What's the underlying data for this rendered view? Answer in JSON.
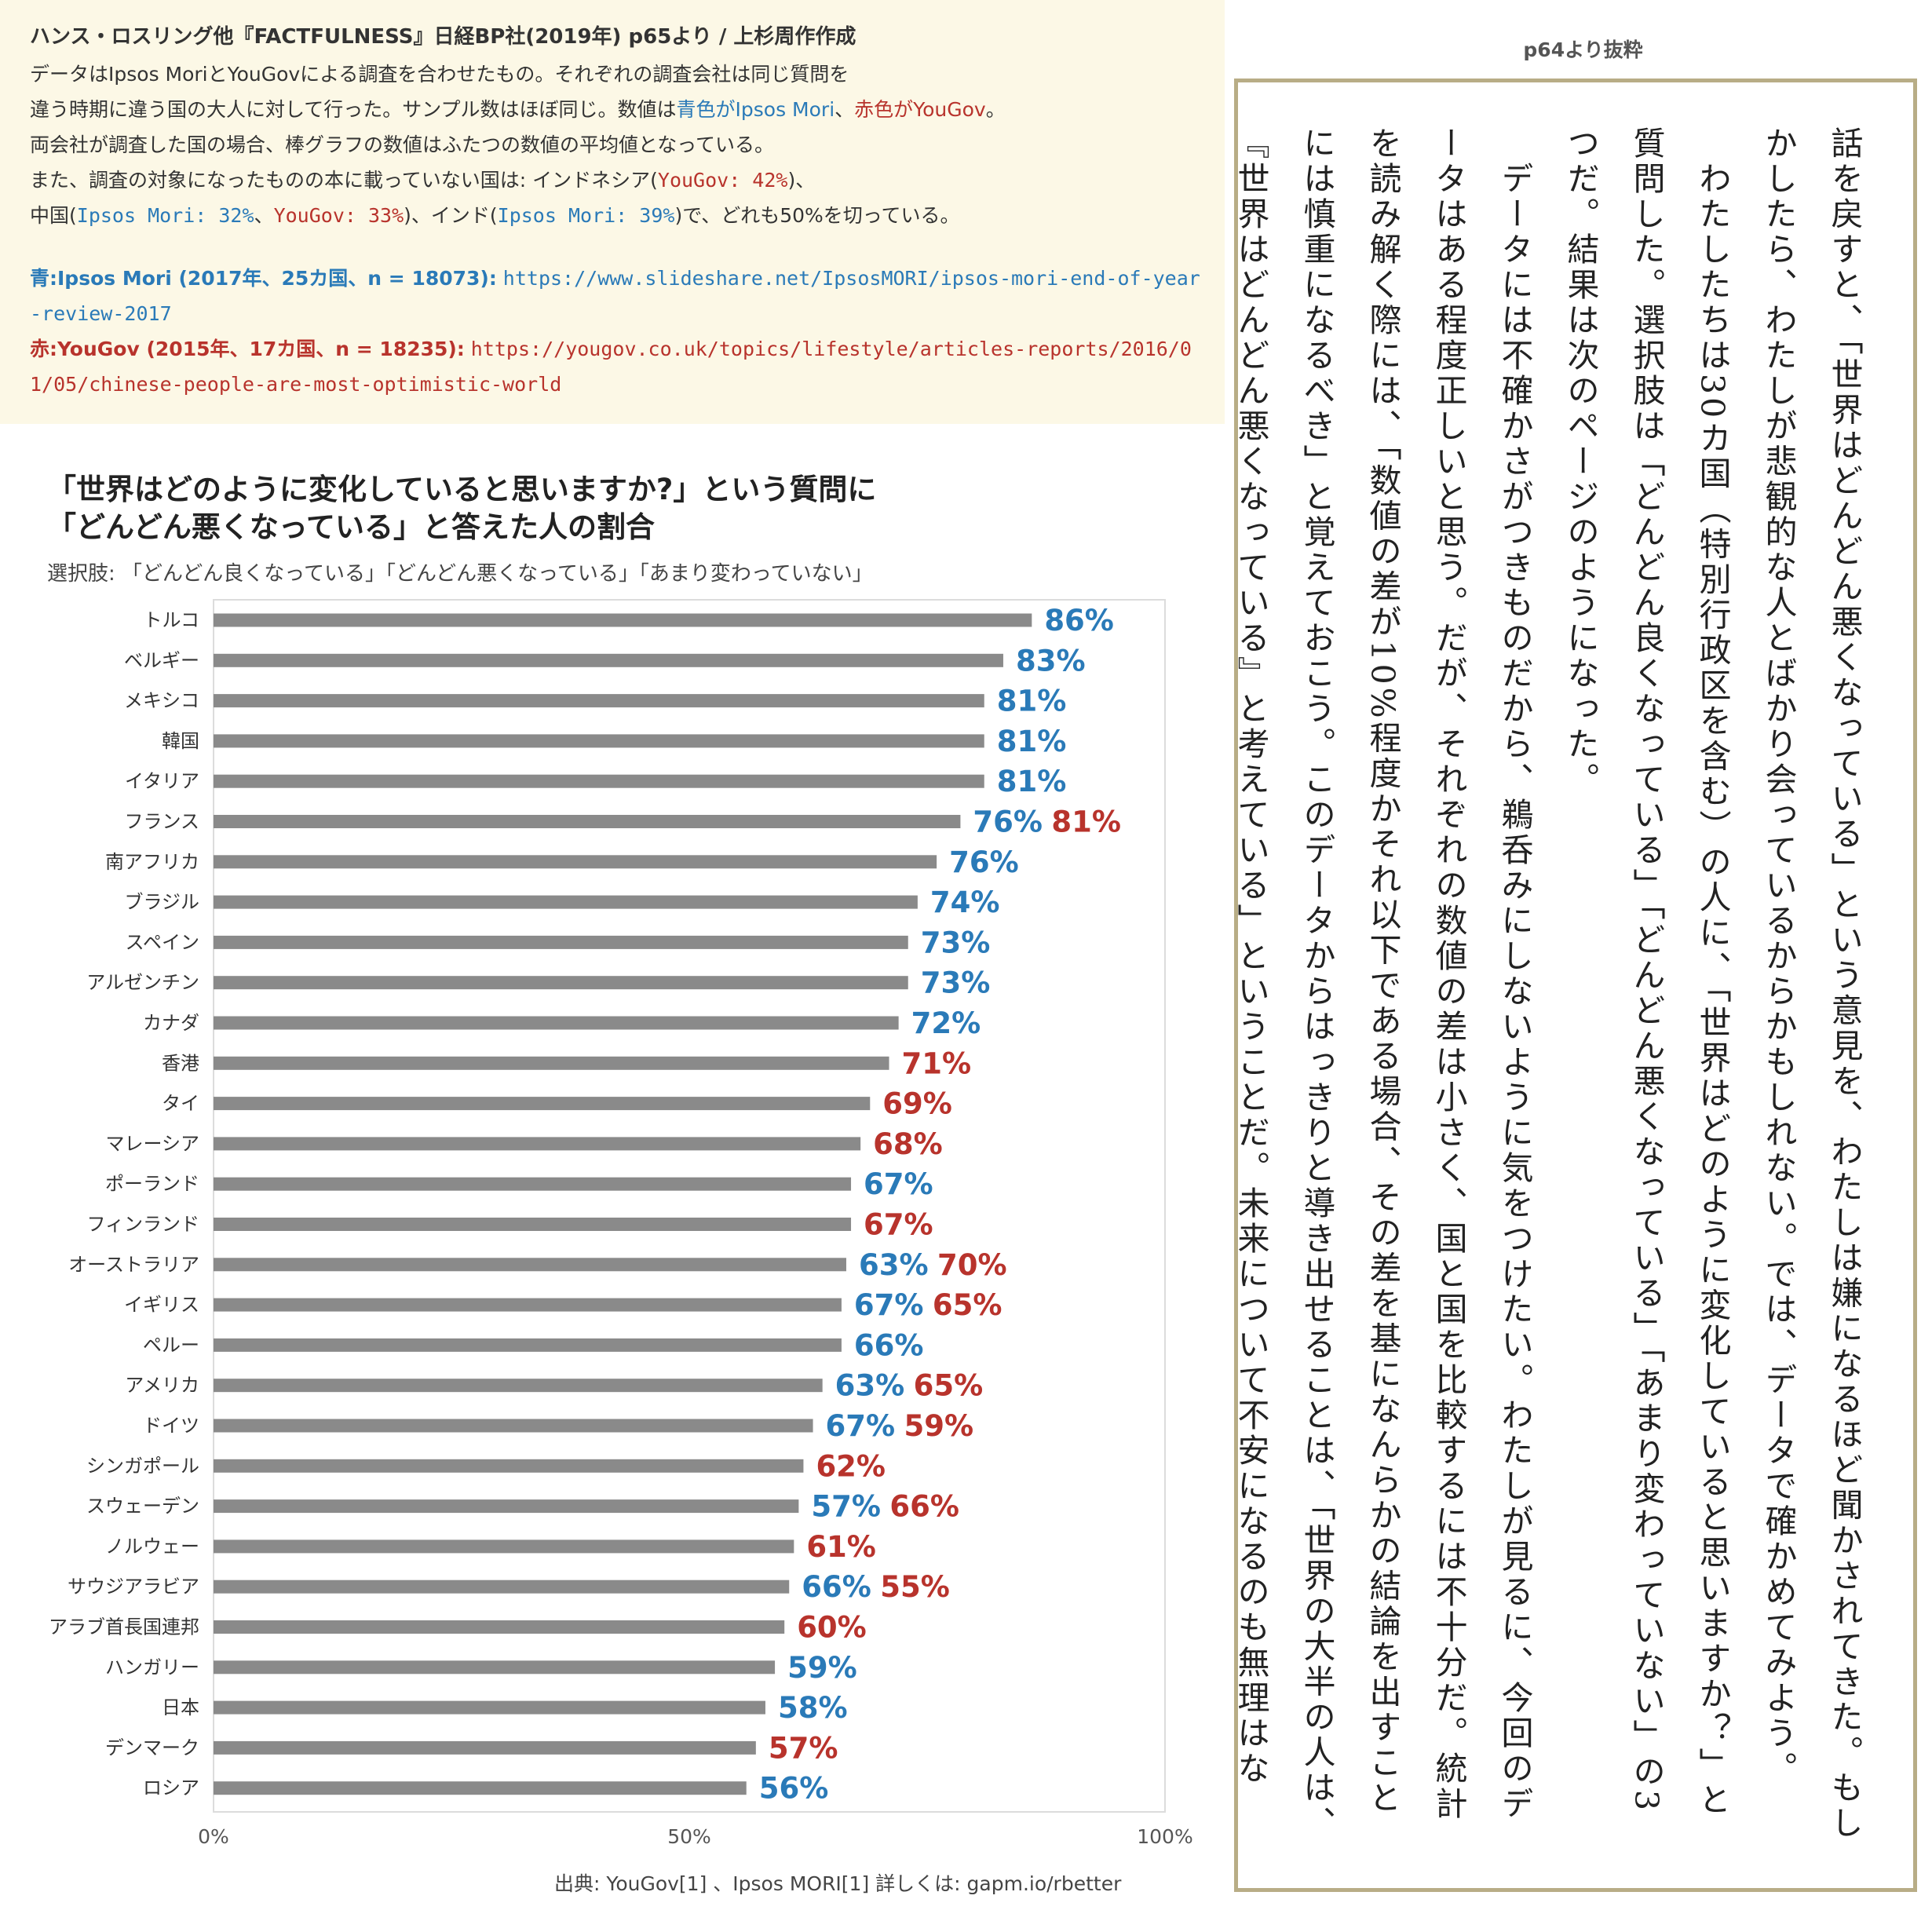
{
  "info": {
    "credit": "ハンス・ロスリング他『FACTFULNESS』日経BP社(2019年) p65より / 上杉周作作成",
    "note_line1": "データはIpsos MoriとYouGovによる調査を合わせたもの。それぞれの調査会社は同じ質問を",
    "note_line2_a": "違う時期に違う国の大人に対して行った。サンプル数はほぼ同じ。数値は",
    "note_line2_blue": "青色がIpsos Mori",
    "note_line2_sep": "、",
    "note_line2_red": "赤色がYouGov",
    "note_line2_end": "。",
    "note_line3": "両会社が調査した国の場合、棒グラフの数値はふたつの数値の平均値となっている。",
    "note_line4_a": "また、調査の対象になったものの本に載っていない国は: インドネシア(",
    "note_line4_red": "YouGov: 42%",
    "note_line4_end": ")、",
    "note_line5_a": "中国(",
    "note_line5_blue": "Ipsos Mori: 32%",
    "note_line5_sep": "、",
    "note_line5_red": "YouGov: 33%",
    "note_line5_b": ")、インド(",
    "note_line5_blue2": "Ipsos Mori: 39%",
    "note_line5_end": ")で、どれも50%を切っている。",
    "source_blue_label": "青:Ipsos Mori (2017年、25カ国、n = 18073):",
    "source_blue_url": "https://www.slideshare.net/IpsosMORI/ipsos-mori-end-of-year-review-2017",
    "source_red_label": "赤:YouGov (2015年、17カ国、n = 18235):",
    "source_red_url": "https://yougov.co.uk/topics/lifestyle/articles-reports/2016/01/05/chinese-people-are-most-optimistic-world"
  },
  "excerpt": {
    "title": "p64より抜粋",
    "text": "話を戻すと、「世界はどんどん悪くなっている」という意見を、わたしは嫌になるほど聞かされてきた。もしかしたら、わたしが悲観的な人とばかり会っているからかもしれない。では、データで確かめてみよう。\n　わたしたちは30カ国（特別行政区を含む）の人に、「世界はどのように変化していると思いますか？」と質問した。選択肢は「どんどん良くなっている」「どんどん悪くなっている」「あまり変わっていない」の3つだ。結果は次のページのようになった。\n　データには不確かさがつきものだから、鵜呑みにしないように気をつけたい。わたしが見るに、今回のデータはある程度正しいと思う。だが、それぞれの数値の差は小さく、国と国を比較するには不十分だ。統計を読み解く際には、「数値の差が10%程度かそれ以下である場合、その差を基になんらかの結論を出すことには慎重になるべき」と覚えておこう。このデータからはっきりと導き出せることは、「世界の大半の人は、『世界はどんどん悪くなっている』と考えている」ということだ。未来について不安になるのも無理はない。"
  },
  "colors": {
    "ipsos_mori": "#2a7ab8",
    "yougov": "#b8332c",
    "bar": "#8a8a8a",
    "background_info": "#fcf8e6",
    "excerpt_border": "#b8ad86"
  },
  "chart_data": {
    "type": "bar",
    "orientation": "horizontal",
    "title_line1": "「世界はどのように変化していると思いますか?」という質問に",
    "title_line2": "「どんどん悪くなっている」と答えた人の割合",
    "subtitle": "選択肢: 「どんどん良くなっている」「どんどん悪くなっている」「あまり変わっていない」",
    "xlim": [
      0,
      100
    ],
    "x_ticks": [
      "0%",
      "50%",
      "100%"
    ],
    "footer": "出典:  YouGov[1] 、Ipsos MORI[1]  詳しくは: gapm.io/rbetter",
    "categories": [
      "トルコ",
      "ベルギー",
      "メキシコ",
      "韓国",
      "イタリア",
      "フランス",
      "南アフリカ",
      "ブラジル",
      "スペイン",
      "アルゼンチン",
      "カナダ",
      "香港",
      "タイ",
      "マレーシア",
      "ポーランド",
      "フィンランド",
      "オーストラリア",
      "イギリス",
      "ペルー",
      "アメリカ",
      "ドイツ",
      "シンガポール",
      "スウェーデン",
      "ノルウェー",
      "サウジアラビア",
      "アラブ首長国連邦",
      "ハンガリー",
      "日本",
      "デンマーク",
      "ロシア"
    ],
    "values": [
      86,
      83,
      81,
      81,
      81,
      78.5,
      76,
      74,
      73,
      73,
      72,
      71,
      69,
      68,
      67,
      67,
      66.5,
      66,
      66,
      64,
      63,
      62,
      61.5,
      61,
      60.5,
      60,
      59,
      58,
      57,
      56
    ],
    "series": [
      {
        "name": "Ipsos Mori",
        "values": [
          86,
          83,
          81,
          81,
          81,
          76,
          76,
          74,
          73,
          73,
          72,
          null,
          null,
          null,
          67,
          null,
          63,
          67,
          66,
          63,
          67,
          null,
          57,
          null,
          66,
          null,
          59,
          58,
          null,
          56
        ]
      },
      {
        "name": "YouGov",
        "values": [
          null,
          null,
          null,
          null,
          null,
          81,
          null,
          null,
          null,
          null,
          null,
          71,
          69,
          68,
          null,
          67,
          70,
          65,
          null,
          65,
          59,
          62,
          66,
          61,
          55,
          60,
          null,
          null,
          57,
          null
        ]
      }
    ]
  }
}
